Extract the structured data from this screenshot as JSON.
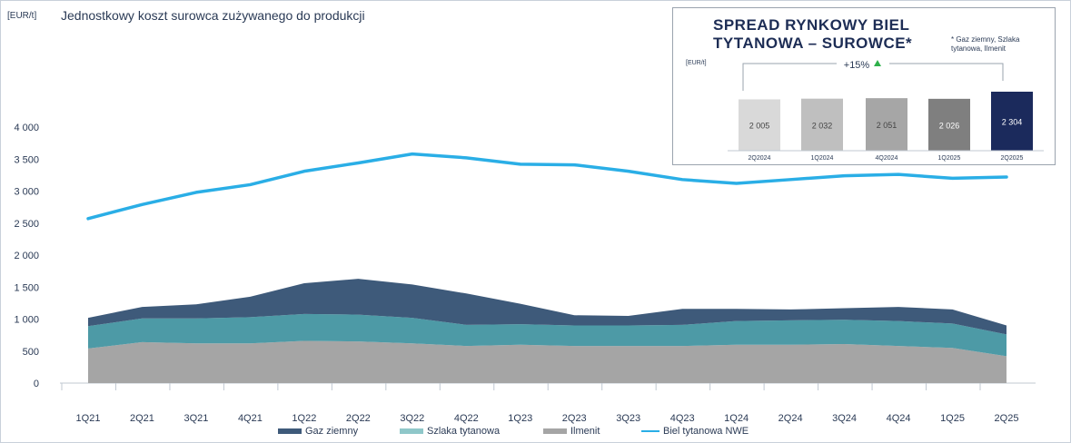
{
  "header": {
    "unit": "[EUR/t]",
    "title": "Jednostkowy koszt surowca zużywanego do produkcji"
  },
  "colors": {
    "gaz": "#3e5a7a",
    "szlaka": "#4d9aa6",
    "ilmenit": "#a5a5a5",
    "biel": "#2aaee6"
  },
  "chart_data": [
    {
      "type": "area",
      "stacked": true,
      "title": "Jednostkowy koszt surowca zużywanego do produkcji",
      "ylabel": "[EUR/t]",
      "ylim": [
        0,
        4000
      ],
      "yticks": [
        0,
        500,
        1000,
        1500,
        2000,
        2500,
        3000,
        3500,
        4000
      ],
      "ytick_labels": [
        "0",
        "500",
        "1 000",
        "1 500",
        "2 000",
        "2 500",
        "3 000",
        "3 500",
        "4 000"
      ],
      "categories": [
        "1Q21",
        "2Q21",
        "3Q21",
        "4Q21",
        "1Q22",
        "2Q22",
        "3Q22",
        "4Q22",
        "1Q23",
        "2Q23",
        "3Q23",
        "4Q23",
        "1Q24",
        "2Q24",
        "3Q24",
        "4Q24",
        "1Q25",
        "2Q25"
      ],
      "legend_position": "bottom",
      "series": [
        {
          "name": "Ilmenit",
          "type": "area",
          "values": [
            540,
            640,
            620,
            620,
            660,
            650,
            620,
            580,
            600,
            580,
            580,
            580,
            600,
            600,
            610,
            580,
            550,
            420
          ]
        },
        {
          "name": "Szlaka tytanowa",
          "type": "area",
          "values": [
            350,
            370,
            390,
            410,
            420,
            420,
            400,
            330,
            320,
            320,
            320,
            330,
            370,
            380,
            380,
            390,
            380,
            340
          ]
        },
        {
          "name": "Gaz ziemny",
          "type": "area",
          "values": [
            130,
            180,
            220,
            320,
            480,
            560,
            520,
            490,
            320,
            160,
            150,
            250,
            190,
            170,
            180,
            220,
            220,
            140
          ]
        },
        {
          "name": "Biel tytanowa NWE",
          "type": "line",
          "values": [
            2570,
            2790,
            2980,
            3100,
            3310,
            3440,
            3580,
            3520,
            3420,
            3410,
            3310,
            3180,
            3120,
            3180,
            3240,
            3260,
            3200,
            3220
          ]
        }
      ]
    },
    {
      "type": "bar",
      "title": "SPREAD RYNKOWY BIEL\nTYTANOWA – SUROWCE*",
      "note": "* Gaz ziemny, Szlaka\ntytanowa, Ilmenit",
      "ylabel": "[EUR/t]",
      "categories": [
        "2Q2024",
        "1Q2024",
        "4Q2024",
        "1Q2025",
        "2Q2025"
      ],
      "values": [
        2005,
        2032,
        2051,
        2026,
        2304
      ],
      "value_labels": [
        "2 005",
        "2 032",
        "2 051",
        "2 026",
        "2 304"
      ],
      "bar_colors": [
        "#d9d9d9",
        "#bfbfbf",
        "#a6a6a6",
        "#7f7f7f",
        "#1b2a5c"
      ],
      "annotation": "+15%"
    }
  ]
}
